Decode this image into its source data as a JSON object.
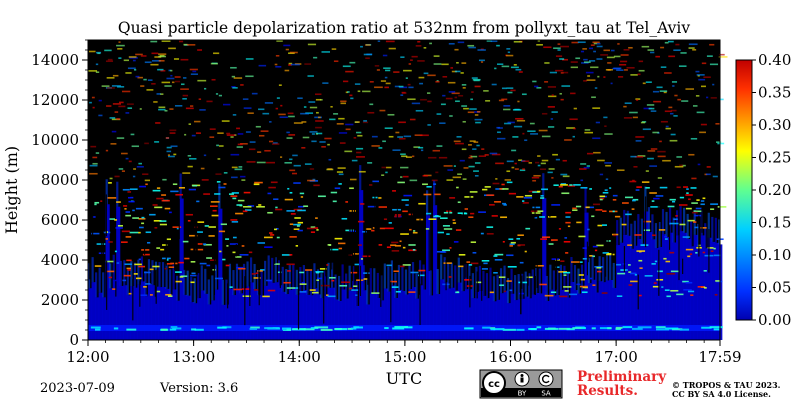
{
  "chart_data": {
    "type": "heatmap",
    "title": "Quasi particle depolarization ratio at 532nm from pollyxt_tau at Tel_Aviv",
    "xlabel": "UTC",
    "ylabel": "Height (m)",
    "x_ticks": [
      "12:00",
      "13:00",
      "14:00",
      "15:00",
      "16:00",
      "17:00",
      "17:59"
    ],
    "x_range": [
      "12:00",
      "17:59"
    ],
    "y_ticks": [
      0,
      2000,
      4000,
      6000,
      8000,
      10000,
      12000,
      14000
    ],
    "ylim": [
      0,
      15000
    ],
    "colorbar": {
      "ticks": [
        "0.00",
        "0.05",
        "0.10",
        "0.15",
        "0.20",
        "0.25",
        "0.30",
        "0.35",
        "0.40"
      ],
      "range": [
        0.0,
        0.4
      ],
      "colormap": "jet"
    },
    "features": {
      "background": "no data (black)",
      "boundary_layer_top_m": 2200,
      "boundary_layer_ratio": 0.03,
      "near_surface_layer_height_m": 600,
      "near_surface_layer_ratio": 0.06,
      "elevated_layer_from": "17:00",
      "elevated_layer_top_m": 5000,
      "scattered_noise_range": [
        0.05,
        0.4
      ]
    }
  },
  "footer": {
    "date": "2023-07-09",
    "version": "Version: 3.6",
    "preliminary_line1": "Preliminary",
    "preliminary_line2": "Results.",
    "copyright_line1": "© TROPOS & TAU 2023.",
    "copyright_line2": "CC BY SA 4.0 License.",
    "license_badge": {
      "cc": "cc",
      "by": "BY",
      "sa": "SA"
    }
  }
}
